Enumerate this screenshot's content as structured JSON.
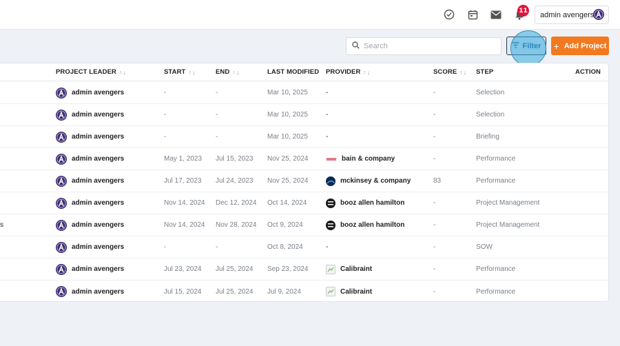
{
  "header": {
    "notification_count": "11",
    "user_name": "admin avengers",
    "icons": [
      "check-circle-icon",
      "calendar-icon",
      "mail-icon",
      "bell-icon"
    ]
  },
  "toolbar": {
    "search_placeholder": "Search",
    "filter_label": "Filter",
    "add_label": "Add Project"
  },
  "columns": {
    "leader": "PROJECT LEADER",
    "start": "START",
    "end": "END",
    "modified": "LAST MODIFIED",
    "provider": "PROVIDER",
    "score": "SCORE",
    "step": "STEP",
    "action": "ACTION",
    "sort_glyph": "↑↓"
  },
  "rows": [
    {
      "name_fragment": "",
      "leader": "admin avengers",
      "start": "-",
      "end": "-",
      "modified": "Mar 10, 2025",
      "provider": "-",
      "provider_logo": "none",
      "score": "-",
      "step": "Selection"
    },
    {
      "name_fragment": "",
      "leader": "admin avengers",
      "start": "-",
      "end": "-",
      "modified": "Mar 10, 2025",
      "provider": "-",
      "provider_logo": "none",
      "score": "-",
      "step": "Selection"
    },
    {
      "name_fragment": "",
      "leader": "admin avengers",
      "start": "-",
      "end": "-",
      "modified": "Mar 10, 2025",
      "provider": "-",
      "provider_logo": "none",
      "score": "-",
      "step": "Briefing"
    },
    {
      "name_fragment": "",
      "leader": "admin avengers",
      "start": "May 1, 2023",
      "end": "Jul 15, 2023",
      "modified": "Nov 25, 2024",
      "provider": "bain & company",
      "provider_logo": "bain",
      "score": "-",
      "step": "Performance"
    },
    {
      "name_fragment": "",
      "leader": "admin avengers",
      "start": "Jul 17, 2023",
      "end": "Jul 24, 2023",
      "modified": "Nov 25, 2024",
      "provider": "mckinsey & company",
      "provider_logo": "mck",
      "score": "83",
      "step": "Performance"
    },
    {
      "name_fragment": "",
      "leader": "admin avengers",
      "start": "Nov 14, 2024",
      "end": "Dec 12, 2024",
      "modified": "Oct 14, 2024",
      "provider": "booz allen hamilton",
      "provider_logo": "booz",
      "score": "-",
      "step": "Project Management"
    },
    {
      "name_fragment": "s",
      "leader": "admin avengers",
      "start": "Nov 14, 2024",
      "end": "Nov 28, 2024",
      "modified": "Oct 9, 2024",
      "provider": "booz allen hamilton",
      "provider_logo": "booz",
      "score": "-",
      "step": "Project Management"
    },
    {
      "name_fragment": "",
      "leader": "admin avengers",
      "start": "-",
      "end": "-",
      "modified": "Oct 8, 2024",
      "provider": "-",
      "provider_logo": "none",
      "score": "-",
      "step": "SOW"
    },
    {
      "name_fragment": "",
      "leader": "admin avengers",
      "start": "Jul 23, 2024",
      "end": "Jul 25, 2024",
      "modified": "Sep 23, 2024",
      "provider": "Calibraint",
      "provider_logo": "cali",
      "score": "-",
      "step": "Performance"
    },
    {
      "name_fragment": "",
      "leader": "admin avengers",
      "start": "Jul 15, 2024",
      "end": "Jul 25, 2024",
      "modified": "Jul 9, 2024",
      "provider": "Calibraint",
      "provider_logo": "cali",
      "score": "-",
      "step": "Performance"
    }
  ]
}
